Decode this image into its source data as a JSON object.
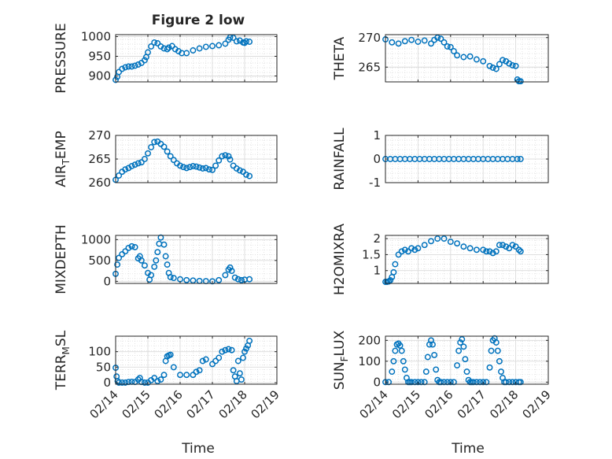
{
  "figure": {
    "title": "Figure 2 low",
    "xlabel": "Time"
  },
  "x_ticks": [
    "02/14",
    "02/15",
    "02/16",
    "02/17",
    "02/18",
    "02/19"
  ],
  "x_range": [
    0,
    5
  ],
  "marker_color": "#0072BD",
  "chart_data": [
    {
      "id": "pressure",
      "type": "scatter",
      "ylabel": "PRESSURE",
      "ylim": [
        885,
        1005
      ],
      "yticks": [
        900,
        950,
        1000
      ],
      "x": [
        0.0,
        0.05,
        0.1,
        0.2,
        0.3,
        0.4,
        0.5,
        0.6,
        0.7,
        0.8,
        0.9,
        0.95,
        1.0,
        1.1,
        1.2,
        1.3,
        1.4,
        1.5,
        1.6,
        1.65,
        1.75,
        1.85,
        1.95,
        2.05,
        2.2,
        2.4,
        2.6,
        2.8,
        3.0,
        3.2,
        3.4,
        3.5,
        3.55,
        3.65,
        3.75,
        3.85,
        3.95,
        4.0,
        4.05,
        4.15
      ],
      "y": [
        890,
        898,
        910,
        918,
        922,
        924,
        924,
        926,
        929,
        933,
        940,
        948,
        960,
        975,
        985,
        983,
        975,
        970,
        968,
        972,
        976,
        968,
        963,
        958,
        958,
        965,
        970,
        974,
        976,
        978,
        982,
        992,
        998,
        997,
        988,
        990,
        985,
        984,
        988,
        987
      ]
    },
    {
      "id": "theta",
      "type": "scatter",
      "ylabel": "THETA",
      "ylim": [
        262.5,
        270.5
      ],
      "yticks": [
        265,
        270
      ],
      "x": [
        0.0,
        0.2,
        0.4,
        0.6,
        0.8,
        1.0,
        1.2,
        1.4,
        1.5,
        1.6,
        1.7,
        1.8,
        1.9,
        2.0,
        2.1,
        2.2,
        2.4,
        2.6,
        2.8,
        3.0,
        3.2,
        3.3,
        3.4,
        3.5,
        3.6,
        3.7,
        3.8,
        3.9,
        4.0,
        4.05,
        4.1,
        4.15
      ],
      "y": [
        269.7,
        269.2,
        269.0,
        269.4,
        269.6,
        269.3,
        269.5,
        269.0,
        269.6,
        270.0,
        269.8,
        269.2,
        268.5,
        268.4,
        267.7,
        267.0,
        266.7,
        266.8,
        266.3,
        266.0,
        265.2,
        264.9,
        264.7,
        265.5,
        266.2,
        266.0,
        265.6,
        265.3,
        265.2,
        262.9,
        262.6,
        262.6
      ]
    },
    {
      "id": "air_temp",
      "type": "scatter",
      "ylabel": "AIR_TEMP",
      "ylim": [
        260,
        270
      ],
      "yticks": [
        260,
        265,
        270
      ],
      "x": [
        0.0,
        0.1,
        0.2,
        0.3,
        0.4,
        0.5,
        0.6,
        0.7,
        0.8,
        0.9,
        1.0,
        1.1,
        1.2,
        1.3,
        1.4,
        1.5,
        1.6,
        1.7,
        1.8,
        1.9,
        2.0,
        2.1,
        2.2,
        2.3,
        2.4,
        2.5,
        2.6,
        2.7,
        2.8,
        2.9,
        3.0,
        3.1,
        3.2,
        3.3,
        3.4,
        3.5,
        3.55,
        3.65,
        3.75,
        3.85,
        3.95,
        4.05,
        4.15
      ],
      "y": [
        260.6,
        261.5,
        262.3,
        262.8,
        263.1,
        263.5,
        263.8,
        264.1,
        264.3,
        265.0,
        266.2,
        267.5,
        268.6,
        268.7,
        268.2,
        267.6,
        266.6,
        265.6,
        264.8,
        264.1,
        263.6,
        263.3,
        263.1,
        263.3,
        263.5,
        263.4,
        263.2,
        263.0,
        263.1,
        262.8,
        262.7,
        263.6,
        264.7,
        265.6,
        265.8,
        265.6,
        264.9,
        263.6,
        263.0,
        262.6,
        262.3,
        261.7,
        261.4
      ]
    },
    {
      "id": "rainfall",
      "type": "scatter",
      "ylabel": "RAINFALL",
      "ylim": [
        -1,
        1
      ],
      "yticks": [
        -1,
        0,
        1
      ],
      "x": [
        0.0,
        0.15,
        0.3,
        0.45,
        0.6,
        0.75,
        0.9,
        1.05,
        1.2,
        1.35,
        1.5,
        1.65,
        1.8,
        1.95,
        2.1,
        2.25,
        2.4,
        2.55,
        2.7,
        2.85,
        3.0,
        3.15,
        3.3,
        3.45,
        3.6,
        3.75,
        3.9,
        4.05,
        4.15
      ],
      "y": [
        0,
        0,
        0,
        0,
        0,
        0,
        0,
        0,
        0,
        0,
        0,
        0,
        0,
        0,
        0,
        0,
        0,
        0,
        0,
        0,
        0,
        0,
        0,
        0,
        0,
        0,
        0,
        0,
        0
      ]
    },
    {
      "id": "mixdepth",
      "type": "scatter",
      "ylabel": "MIXDEPTH",
      "ylim": [
        -50,
        1100
      ],
      "yticks": [
        0,
        500,
        1000
      ],
      "x": [
        0.0,
        0.05,
        0.1,
        0.2,
        0.3,
        0.4,
        0.5,
        0.6,
        0.7,
        0.75,
        0.8,
        0.9,
        1.0,
        1.05,
        1.1,
        1.2,
        1.25,
        1.3,
        1.35,
        1.4,
        1.5,
        1.55,
        1.6,
        1.65,
        1.7,
        1.8,
        2.0,
        2.2,
        2.4,
        2.6,
        2.8,
        3.0,
        3.2,
        3.4,
        3.5,
        3.55,
        3.6,
        3.7,
        3.8,
        3.9,
        4.0,
        4.15
      ],
      "y": [
        180,
        400,
        560,
        650,
        720,
        800,
        840,
        820,
        550,
        600,
        500,
        380,
        200,
        40,
        150,
        350,
        500,
        700,
        900,
        1050,
        880,
        600,
        400,
        200,
        100,
        80,
        50,
        30,
        20,
        10,
        5,
        0,
        30,
        150,
        280,
        330,
        250,
        90,
        50,
        30,
        40,
        50
      ]
    },
    {
      "id": "h2omixra",
      "type": "scatter",
      "ylabel": "H2OMIXRA",
      "ylim": [
        0.6,
        2.1
      ],
      "yticks": [
        1,
        1.5,
        2
      ],
      "x": [
        0.0,
        0.05,
        0.1,
        0.15,
        0.2,
        0.25,
        0.3,
        0.4,
        0.5,
        0.6,
        0.7,
        0.8,
        0.9,
        1.0,
        1.2,
        1.4,
        1.6,
        1.8,
        2.0,
        2.2,
        2.4,
        2.6,
        2.8,
        3.0,
        3.1,
        3.2,
        3.3,
        3.4,
        3.5,
        3.6,
        3.7,
        3.8,
        3.9,
        4.0,
        4.1,
        4.15
      ],
      "y": [
        0.65,
        0.65,
        0.66,
        0.7,
        0.8,
        0.95,
        1.2,
        1.5,
        1.6,
        1.65,
        1.6,
        1.7,
        1.65,
        1.7,
        1.8,
        1.92,
        2.0,
        2.0,
        1.9,
        1.85,
        1.75,
        1.7,
        1.65,
        1.65,
        1.6,
        1.6,
        1.55,
        1.6,
        1.8,
        1.8,
        1.75,
        1.7,
        1.8,
        1.75,
        1.65,
        1.6
      ]
    },
    {
      "id": "terr_msl",
      "type": "scatter",
      "ylabel": "TERR_MSL",
      "ylim": [
        -5,
        150
      ],
      "yticks": [
        0,
        50,
        100
      ],
      "x": [
        0.0,
        0.03,
        0.06,
        0.1,
        0.2,
        0.3,
        0.4,
        0.5,
        0.6,
        0.7,
        0.75,
        0.8,
        0.9,
        1.0,
        1.1,
        1.2,
        1.3,
        1.4,
        1.5,
        1.55,
        1.6,
        1.65,
        1.7,
        1.8,
        2.0,
        2.2,
        2.4,
        2.5,
        2.6,
        2.7,
        2.8,
        3.0,
        3.1,
        3.2,
        3.3,
        3.4,
        3.5,
        3.6,
        3.65,
        3.7,
        3.75,
        3.8,
        3.85,
        3.9,
        3.95,
        4.0,
        4.05,
        4.1,
        4.15
      ],
      "y": [
        48,
        20,
        5,
        0,
        0,
        0,
        2,
        3,
        2,
        10,
        15,
        2,
        0,
        0,
        8,
        15,
        5,
        10,
        25,
        70,
        85,
        88,
        90,
        50,
        25,
        25,
        25,
        35,
        40,
        70,
        75,
        60,
        70,
        80,
        100,
        105,
        108,
        105,
        40,
        20,
        5,
        70,
        30,
        10,
        80,
        100,
        110,
        120,
        135
      ]
    },
    {
      "id": "sun_flux",
      "type": "scatter",
      "ylabel": "SUN_FLUX",
      "ylim": [
        -10,
        220
      ],
      "yticks": [
        0,
        100,
        200
      ],
      "x": [
        0.0,
        0.1,
        0.2,
        0.25,
        0.3,
        0.35,
        0.4,
        0.45,
        0.5,
        0.55,
        0.6,
        0.65,
        0.7,
        0.75,
        0.8,
        0.9,
        1.0,
        1.1,
        1.2,
        1.25,
        1.3,
        1.35,
        1.4,
        1.45,
        1.5,
        1.55,
        1.6,
        1.65,
        1.7,
        1.8,
        1.9,
        2.0,
        2.1,
        2.2,
        2.25,
        2.3,
        2.35,
        2.4,
        2.45,
        2.5,
        2.55,
        2.6,
        2.65,
        2.7,
        2.8,
        2.9,
        3.0,
        3.1,
        3.2,
        3.25,
        3.3,
        3.35,
        3.4,
        3.45,
        3.5,
        3.55,
        3.6,
        3.65,
        3.7,
        3.8,
        3.9,
        4.0,
        4.1,
        4.15
      ],
      "y": [
        0,
        0,
        50,
        100,
        150,
        180,
        185,
        175,
        150,
        100,
        60,
        20,
        0,
        0,
        0,
        0,
        0,
        0,
        0,
        50,
        120,
        180,
        200,
        180,
        130,
        60,
        10,
        0,
        0,
        0,
        0,
        0,
        0,
        80,
        150,
        190,
        205,
        170,
        110,
        50,
        10,
        0,
        0,
        0,
        0,
        0,
        0,
        0,
        70,
        150,
        200,
        210,
        190,
        150,
        100,
        50,
        20,
        0,
        0,
        0,
        0,
        0,
        0,
        0
      ]
    }
  ]
}
